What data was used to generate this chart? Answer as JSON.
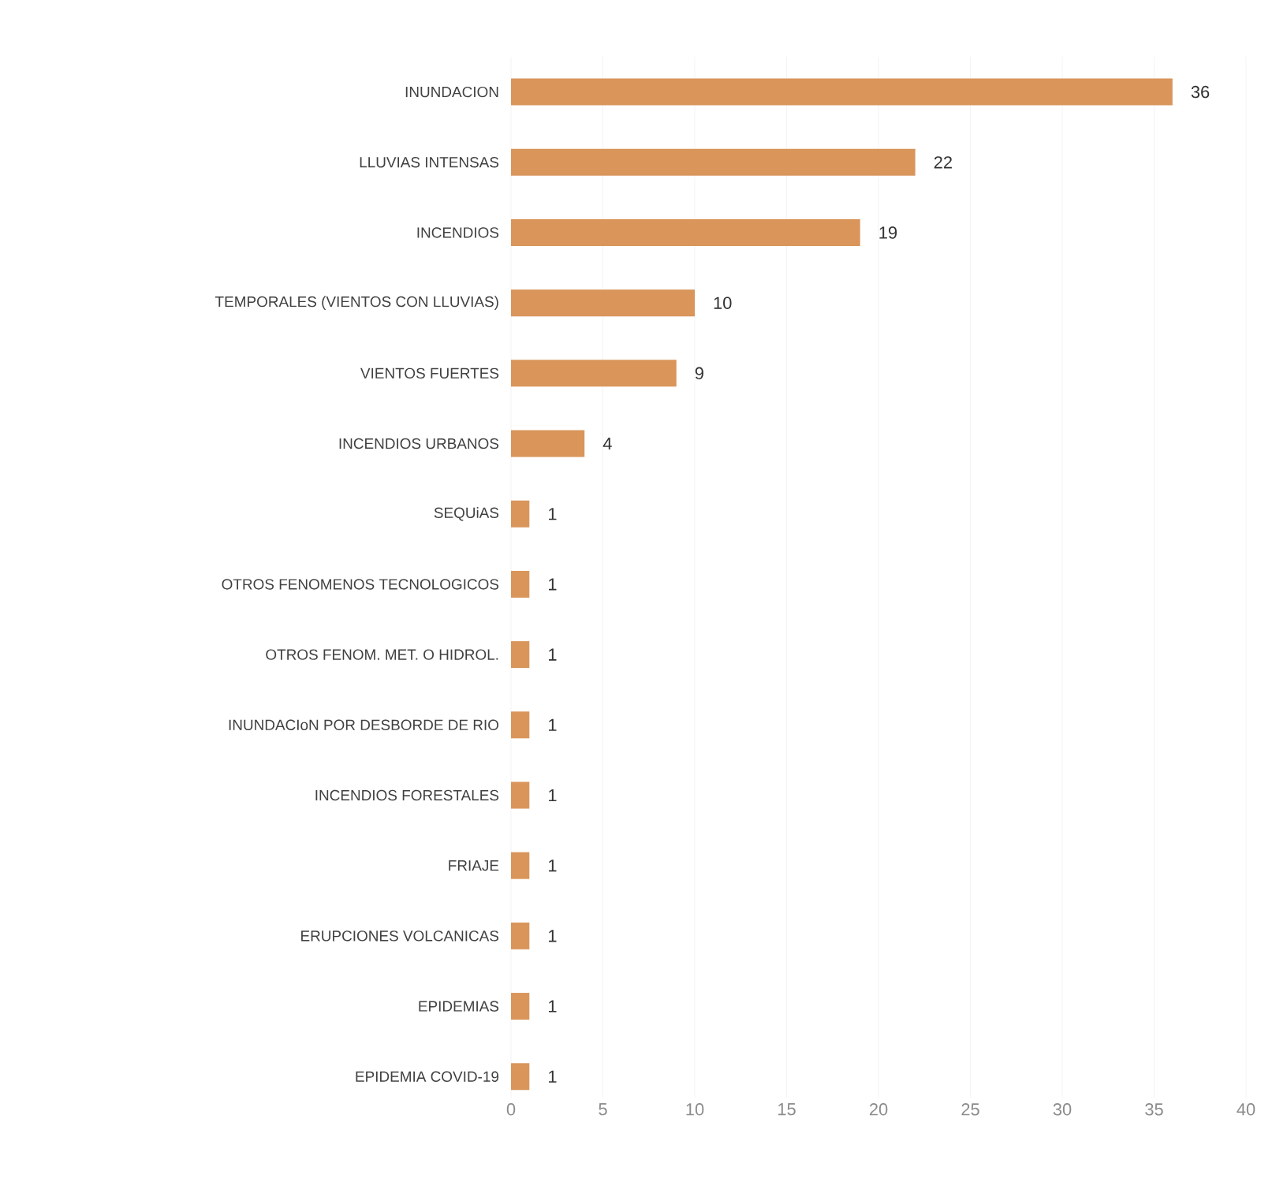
{
  "chart_data": {
    "type": "bar",
    "orientation": "horizontal",
    "categories": [
      "INUNDACION",
      "LLUVIAS INTENSAS",
      "INCENDIOS",
      "TEMPORALES (VIENTOS CON LLUVIAS)",
      "VIENTOS FUERTES",
      "INCENDIOS URBANOS",
      "SEQUiAS",
      "OTROS FENOMENOS TECNOLOGICOS",
      "OTROS FENOM. MET.  O HIDROL.",
      "INUNDACIoN POR DESBORDE DE RIO",
      "INCENDIOS FORESTALES",
      "FRIAJE",
      "ERUPCIONES VOLCANICAS",
      "EPIDEMIAS",
      "EPIDEMIA COVID-19"
    ],
    "values": [
      36,
      22,
      19,
      10,
      9,
      4,
      1,
      1,
      1,
      1,
      1,
      1,
      1,
      1,
      1
    ],
    "color": "#d9955a",
    "data_labels": true,
    "xlim": [
      0,
      40
    ],
    "xticks": [
      0,
      5,
      10,
      15,
      20,
      25,
      30,
      35,
      40
    ],
    "grid": "x"
  }
}
